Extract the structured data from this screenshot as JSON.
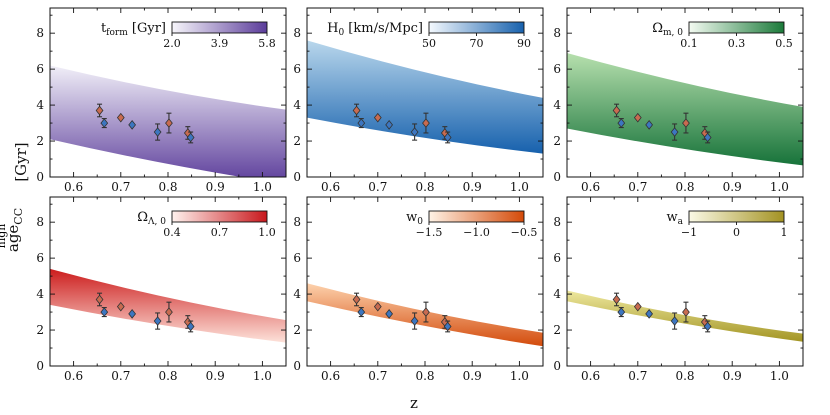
{
  "figure": {
    "xlabel": "z",
    "ylabel_main": "age",
    "ylabel_sub": "CC",
    "ylabel_sup": "high",
    "ylabel_unit": "[Gyr]"
  },
  "chart_data": {
    "type": "scatter",
    "xlim": [
      0.55,
      1.05
    ],
    "ylim": [
      0,
      9.4
    ],
    "xticks": [
      "0.6",
      "0.7",
      "0.8",
      "0.9",
      "1.0"
    ],
    "yticks": [
      "0",
      "2",
      "4",
      "6",
      "8"
    ],
    "data_series": [
      {
        "color": "#c86b50",
        "marker": "diamond",
        "points": [
          {
            "x": 0.655,
            "y": 3.7,
            "err": 0.35
          },
          {
            "x": 0.7,
            "y": 3.3,
            "err": 0.0
          },
          {
            "x": 0.802,
            "y": 3.0,
            "err": 0.55
          },
          {
            "x": 0.842,
            "y": 2.45,
            "err": 0.35
          }
        ]
      },
      {
        "color": "#3d76c0",
        "marker": "diamond",
        "points": [
          {
            "x": 0.665,
            "y": 3.0,
            "err": 0.25
          },
          {
            "x": 0.724,
            "y": 2.9,
            "err": 0.0
          },
          {
            "x": 0.778,
            "y": 2.5,
            "err": 0.45
          },
          {
            "x": 0.848,
            "y": 2.2,
            "err": 0.3
          }
        ]
      }
    ],
    "panels": [
      {
        "id": "tform",
        "colorbar_label": "t",
        "colorbar_sub": "form",
        "colorbar_unit": " [Gyr]",
        "colorbar_ticks": [
          "2.0",
          "3.9",
          "5.8"
        ],
        "colormap": [
          "#f7f6fb",
          "#5b3c9a"
        ],
        "band_top_hex": "#f1eff8",
        "band_bottom_hex": "#5b3c9a",
        "band_top": [
          [
            0.55,
            6.2
          ],
          [
            1.05,
            3.75
          ]
        ],
        "band_bottom": [
          [
            0.55,
            2.1
          ],
          [
            1.05,
            -0.4
          ]
        ]
      },
      {
        "id": "H0",
        "colorbar_label": "H",
        "colorbar_sub": "0",
        "colorbar_unit": " [km/s/Mpc]",
        "colorbar_ticks": [
          "50",
          "70",
          "90"
        ],
        "colormap": [
          "#f4f9fe",
          "#1761ad"
        ],
        "band_top_hex": "#b9d7ec",
        "band_bottom_hex": "#1761ad",
        "band_top": [
          [
            0.55,
            7.6
          ],
          [
            1.05,
            4.4
          ]
        ],
        "band_bottom": [
          [
            0.55,
            3.3
          ],
          [
            1.05,
            1.3
          ]
        ]
      },
      {
        "id": "Om",
        "colorbar_label": "Ω",
        "colorbar_sub": "m, 0",
        "colorbar_unit": "",
        "colorbar_ticks": [
          "0.1",
          "0.3",
          "0.5"
        ],
        "colormap": [
          "#f4fbf2",
          "#1b7a3a"
        ],
        "band_top_hex": "#b7e0ae",
        "band_bottom_hex": "#17733a",
        "band_top": [
          [
            0.55,
            6.9
          ],
          [
            1.05,
            3.9
          ]
        ],
        "band_bottom": [
          [
            0.55,
            2.7
          ],
          [
            1.05,
            0.65
          ]
        ]
      },
      {
        "id": "OL",
        "colorbar_label": "Ω",
        "colorbar_sub": "Λ, 0",
        "colorbar_unit": "",
        "colorbar_ticks": [
          "0.4",
          "0.7",
          "1.0"
        ],
        "colormap": [
          "#fff2ee",
          "#c8171c"
        ],
        "band_top_hex": "#cc1d1d",
        "band_bottom_hex": "#fde2da",
        "band_top": [
          [
            0.55,
            5.4
          ],
          [
            1.05,
            2.55
          ]
        ],
        "band_bottom": [
          [
            0.55,
            3.4
          ],
          [
            1.05,
            1.3
          ]
        ]
      },
      {
        "id": "w0",
        "colorbar_label": "w",
        "colorbar_sub": "0",
        "colorbar_unit": "",
        "colorbar_ticks": [
          "−1.5",
          "−1.0",
          "−0.5"
        ],
        "colormap": [
          "#fff3e6",
          "#d44a09"
        ],
        "band_top_hex": "#fdd2ad",
        "band_bottom_hex": "#d34b0c",
        "band_top": [
          [
            0.55,
            4.6
          ],
          [
            1.05,
            1.85
          ]
        ],
        "band_bottom": [
          [
            0.55,
            3.6
          ],
          [
            1.05,
            1.1
          ]
        ]
      },
      {
        "id": "wa",
        "colorbar_label": "w",
        "colorbar_sub": "a",
        "colorbar_unit": "",
        "colorbar_ticks": [
          "−1",
          "0",
          "1"
        ],
        "colormap": [
          "#fbfae6",
          "#a39222"
        ],
        "band_top_hex": "#eee89e",
        "band_bottom_hex": "#a39524",
        "band_top": [
          [
            0.55,
            4.2
          ],
          [
            1.05,
            1.8
          ]
        ],
        "band_bottom": [
          [
            0.55,
            3.6
          ],
          [
            1.05,
            1.35
          ]
        ]
      }
    ]
  }
}
